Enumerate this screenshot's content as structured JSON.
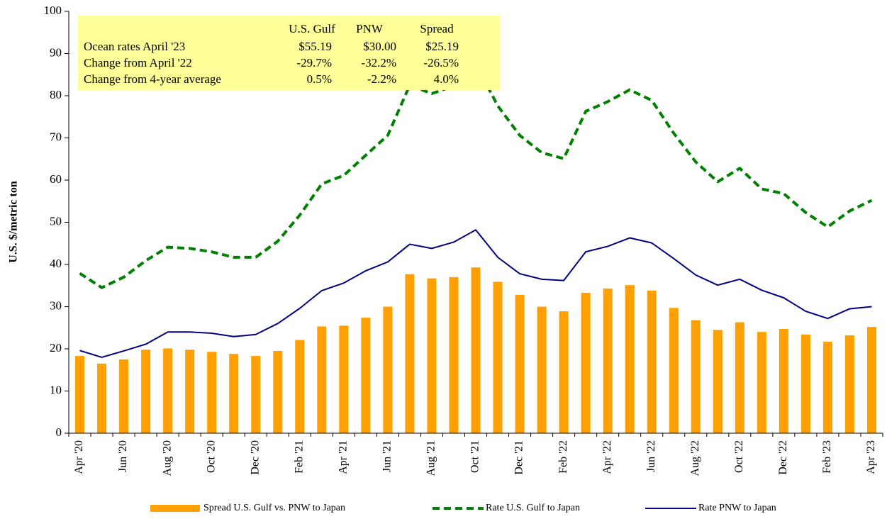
{
  "chart_data": {
    "type": "bar-line",
    "y_label": "U.S. $/metric ton",
    "categories": [
      "Apr '20",
      null,
      "Jun '20",
      null,
      "Aug '20",
      null,
      "Oct '20",
      null,
      "Dec '20",
      null,
      "Feb '21",
      null,
      "Apr '21",
      null,
      "Jun '21",
      null,
      "Aug '21",
      null,
      "Oct '21",
      null,
      "Dec '21",
      null,
      "Feb '22",
      null,
      "Apr '22",
      null,
      "Jun '22",
      null,
      "Aug '22",
      null,
      "Oct '22",
      null,
      "Dec '22",
      null,
      "Feb '23",
      null,
      "Apr '23"
    ],
    "series": [
      {
        "name": "Spread U.S. Gulf vs. PNW to Japan",
        "kind": "bar",
        "color": "#ffa000",
        "values": [
          18.3,
          16.5,
          17.5,
          19.8,
          20.1,
          19.8,
          19.3,
          18.8,
          18.3,
          19.5,
          22.1,
          25.3,
          25.5,
          27.4,
          30.0,
          37.7,
          36.7,
          37.0,
          39.3,
          35.9,
          32.8,
          30.0,
          28.9,
          33.3,
          34.3,
          35.1,
          33.8,
          29.7,
          26.8,
          24.5,
          26.3,
          24.0,
          24.7,
          23.4,
          21.7,
          23.2,
          25.19
        ]
      },
      {
        "name": "Rate U.S. Gulf to Japan",
        "kind": "dashed-line",
        "color": "#008000",
        "values": [
          37.9,
          34.5,
          37.0,
          40.9,
          44.1,
          43.8,
          43.0,
          41.7,
          41.7,
          45.5,
          51.7,
          59.1,
          61.1,
          65.9,
          70.6,
          82.5,
          80.5,
          82.3,
          87.5,
          77.6,
          70.6,
          66.5,
          65.1,
          76.3,
          78.6,
          81.4,
          78.9,
          71.1,
          64.3,
          59.6,
          62.8,
          57.9,
          56.8,
          52.3,
          48.9,
          52.7,
          55.19
        ]
      },
      {
        "name": "Rate PNW to Japan",
        "kind": "line",
        "color": "#000080",
        "values": [
          19.6,
          18.0,
          19.5,
          21.1,
          24.0,
          24.0,
          23.7,
          22.9,
          23.4,
          26.0,
          29.6,
          33.8,
          35.6,
          38.5,
          40.6,
          44.8,
          43.8,
          45.3,
          48.2,
          41.7,
          37.8,
          36.5,
          36.2,
          43.0,
          44.3,
          46.3,
          45.1,
          41.4,
          37.5,
          35.1,
          36.5,
          33.9,
          32.1,
          28.9,
          27.2,
          29.5,
          30.0
        ]
      }
    ],
    "ylim": [
      0,
      100
    ],
    "yticks": [
      0,
      10,
      20,
      30,
      40,
      50,
      60,
      70,
      80,
      90,
      100
    ],
    "table": {
      "header": [
        "U.S.  Gulf",
        "PNW",
        "Spread"
      ],
      "rows": [
        [
          "Ocean rates April '23",
          "$55.19",
          "$30.00",
          "$25.19"
        ],
        [
          "Change from April '22",
          "-29.7%",
          "-32.2%",
          "-26.5%"
        ],
        [
          "Change from 4-year average",
          "0.5%",
          "-2.2%",
          "4.0%"
        ]
      ]
    }
  }
}
